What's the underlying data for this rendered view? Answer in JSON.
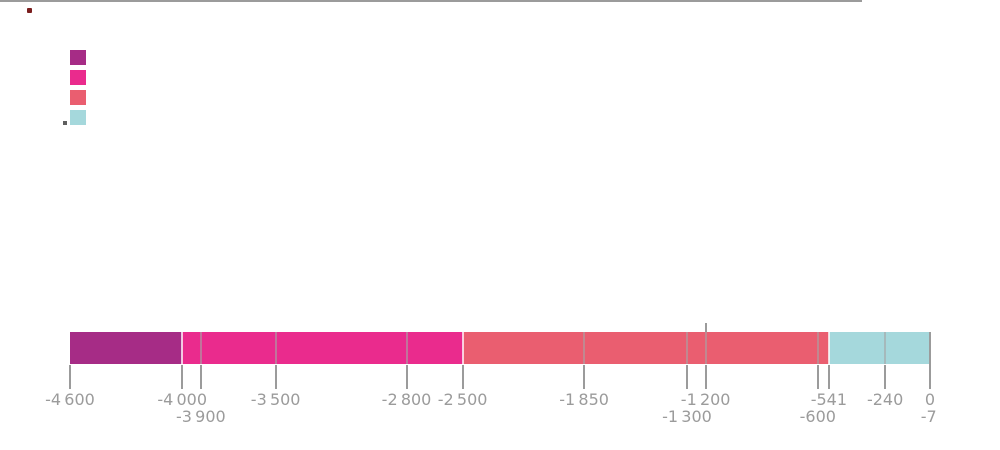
{
  "page": {
    "background": "#ffffff"
  },
  "artifacts": {
    "top_left_dot": {
      "color": "#7a1e1e"
    },
    "legend_corner_notch": {
      "color": "#5f5f5f"
    }
  },
  "legend": {
    "items": [
      {
        "id": "series-1",
        "label": "",
        "color": "#a62c86"
      },
      {
        "id": "series-2",
        "label": "",
        "color": "#ea2b8d"
      },
      {
        "id": "series-3",
        "label": "",
        "color": "#ea5e70"
      },
      {
        "id": "series-4",
        "label": "",
        "color": "#a5d8dc"
      }
    ]
  },
  "chart_data": {
    "type": "bar",
    "orientation": "horizontal-timeline",
    "xlim": [
      -4600,
      0
    ],
    "segments": [
      {
        "id": "segment-1",
        "start": -4600,
        "end": -4000,
        "color": "#a62c86"
      },
      {
        "id": "segment-2",
        "start": -4000,
        "end": -2500,
        "color": "#ea2b8d"
      },
      {
        "id": "segment-3",
        "start": -2500,
        "end": -541,
        "color": "#ea5e70"
      },
      {
        "id": "segment-4",
        "start": -541,
        "end": 0,
        "color": "#a5d8dc"
      }
    ],
    "separator_values": [
      -4000,
      -2500,
      -541
    ],
    "gridline_values": [
      -3900,
      -3500,
      -2800,
      -1850,
      -1300,
      -1200,
      -600,
      -240
    ],
    "annotation_line_value": -1200,
    "edge_line_value": 0,
    "tick_mark_values": [
      -4600,
      -4000,
      -3900,
      -3500,
      -2800,
      -2500,
      -1850,
      -1300,
      -1200,
      -600,
      -541,
      -240
    ],
    "ticks": [
      {
        "value": -4600,
        "label": "-4 600",
        "row": 1
      },
      {
        "value": -4000,
        "label": "-4 000",
        "row": 1
      },
      {
        "value": -3900,
        "label": "-3 900",
        "row": 2
      },
      {
        "value": -3500,
        "label": "-3 500",
        "row": 1
      },
      {
        "value": -2800,
        "label": "-2 800",
        "row": 1
      },
      {
        "value": -2500,
        "label": "-2 500",
        "row": 1
      },
      {
        "value": -1850,
        "label": "-1 850",
        "row": 1
      },
      {
        "value": -1300,
        "label": "-1 300",
        "row": 2
      },
      {
        "value": -1200,
        "label": "-1 200",
        "row": 1
      },
      {
        "value": -600,
        "label": "-600",
        "row": 2
      },
      {
        "value": -541,
        "label": "-541",
        "row": 1
      },
      {
        "value": -240,
        "label": "-240",
        "row": 1
      },
      {
        "value": -7,
        "label": "-7",
        "row": 2
      },
      {
        "value": 0,
        "label": "0",
        "row": 1
      }
    ],
    "colors": {
      "axis": "#9b9b9b",
      "tick": "#9b9b9b",
      "label": "#9b9b9b",
      "gridline_on_bar": "rgba(165,165,165,0.6)",
      "separator_on_bar": "rgba(255,255,255,0.75)"
    },
    "legend_position": "top-left",
    "grid": "off"
  }
}
